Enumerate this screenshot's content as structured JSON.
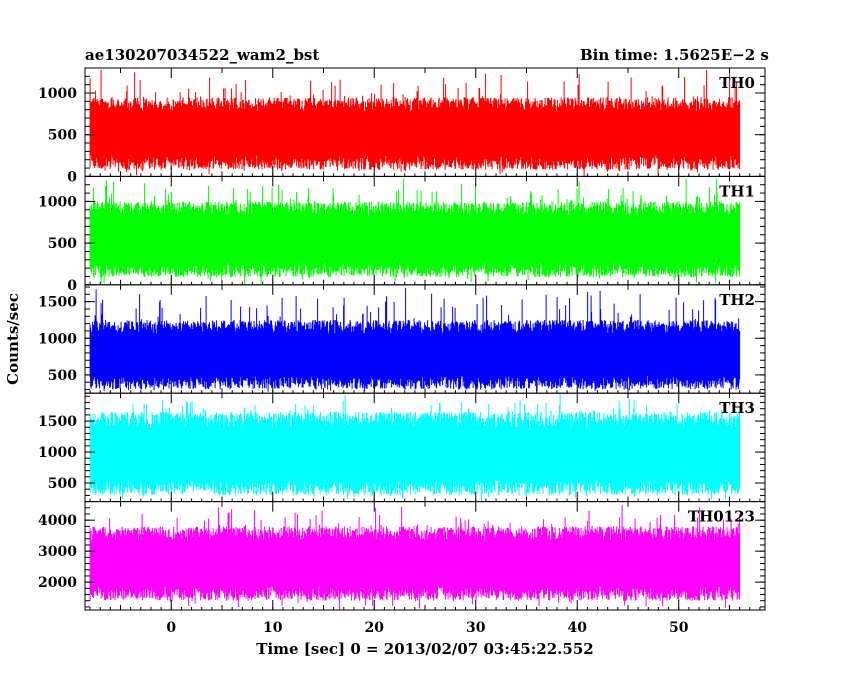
{
  "header": {
    "left_title": "ae130207034522_wam2_bst",
    "right_title": "Bin time: 1.5625E−2 s"
  },
  "chart_data": {
    "type": "line",
    "xlabel": "Time [sec] 0 = 2013/02/07 03:45:22.552",
    "ylabel": "Counts/sec",
    "xlim": [
      -8.5,
      58.5
    ],
    "xticks": [
      0,
      10,
      20,
      30,
      40,
      50
    ],
    "data_x_range": [
      -8.0,
      56.0
    ],
    "bin_time": 0.015625,
    "panels": [
      {
        "name": "TH0",
        "color": "#ff0000",
        "ylim": [
          0,
          1300
        ],
        "yticks": [
          0,
          500,
          1000
        ],
        "typical_low": 80,
        "typical_high": 950,
        "peak_max": 1300
      },
      {
        "name": "TH1",
        "color": "#00ff00",
        "ylim": [
          0,
          1300
        ],
        "yticks": [
          0,
          500,
          1000
        ],
        "typical_low": 90,
        "typical_high": 1000,
        "peak_max": 1300
      },
      {
        "name": "TH2",
        "color": "#0000ff",
        "ylim": [
          250,
          1730
        ],
        "yticks": [
          500,
          1000,
          1500
        ],
        "typical_low": 300,
        "typical_high": 1250,
        "peak_max": 1730
      },
      {
        "name": "TH3",
        "color": "#00ffff",
        "ylim": [
          200,
          1950
        ],
        "yticks": [
          500,
          1000,
          1500
        ],
        "typical_low": 300,
        "typical_high": 1650,
        "peak_max": 1950
      },
      {
        "name": "TH0123",
        "color": "#ff00ff",
        "ylim": [
          1100,
          4600
        ],
        "yticks": [
          2000,
          3000,
          4000
        ],
        "typical_low": 1400,
        "typical_high": 3800,
        "peak_max": 4600
      }
    ]
  }
}
